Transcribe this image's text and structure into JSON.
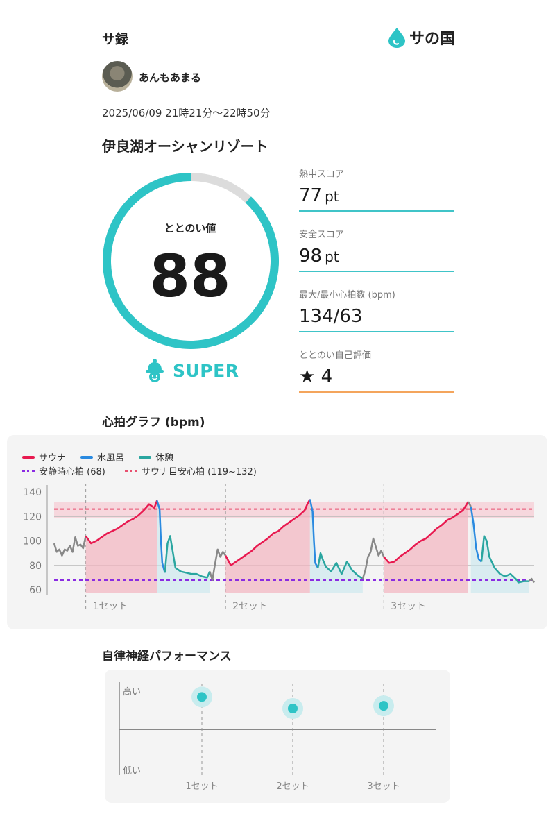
{
  "header": {
    "title": "サ録",
    "brand": "サの国"
  },
  "user": {
    "name": "あんもあまる"
  },
  "session": {
    "datetime": "2025/06/09 21時21分～22時50分",
    "facility": "伊良湖オーシャンリゾート"
  },
  "totonoi": {
    "label": "ととのい値",
    "value": "88",
    "value_num": 88,
    "max": 100,
    "rank": "SUPER"
  },
  "stats": [
    {
      "label": "熱中スコア",
      "value": "77",
      "unit": "pt"
    },
    {
      "label": "安全スコア",
      "value": "98",
      "unit": "pt"
    },
    {
      "label": "最大/最小心拍数 (bpm)",
      "value": "134/63",
      "unit": ""
    },
    {
      "label": "ととのい自己評価",
      "value": "★ 4",
      "unit": ""
    }
  ],
  "heart_section_title": "心拍グラフ (bpm)",
  "legend": {
    "sauna": "サウナ",
    "water": "水風呂",
    "rest": "休憩",
    "resting_hr": "安静時心拍 (68)",
    "sauna_target": "サウナ目安心拍 (119~132)"
  },
  "colors": {
    "accent": "#2ec4c6",
    "sauna": "#e8194f",
    "water": "#2a8ae0",
    "rest": "#2aa6a0",
    "resting": "#8a2be2",
    "pre": "#888888"
  },
  "chart_data": {
    "type": "line",
    "ylim": [
      60,
      140
    ],
    "yticks": [
      "140",
      "120",
      "100",
      "80",
      "60"
    ],
    "resting_hr": 68,
    "sauna_target_range": [
      119,
      132
    ],
    "set_labels": [
      "1セット",
      "2セット",
      "3セット"
    ],
    "segments": [
      {
        "series": "pre",
        "points": [
          [
            0,
            98
          ],
          [
            1,
            91
          ],
          [
            2,
            93
          ],
          [
            3,
            88
          ],
          [
            4,
            93
          ],
          [
            5,
            92
          ],
          [
            6,
            96
          ],
          [
            7,
            91
          ],
          [
            8,
            103
          ],
          [
            9,
            96
          ],
          [
            10,
            97
          ],
          [
            11,
            94
          ],
          [
            12,
            104
          ]
        ]
      },
      {
        "series": "sauna",
        "points": [
          [
            12,
            104
          ],
          [
            14,
            98
          ],
          [
            16,
            100
          ],
          [
            18,
            103
          ],
          [
            20,
            106
          ],
          [
            22,
            108
          ],
          [
            24,
            110
          ],
          [
            26,
            113
          ],
          [
            28,
            116
          ],
          [
            30,
            118
          ],
          [
            32,
            121
          ],
          [
            34,
            125
          ],
          [
            36,
            130
          ],
          [
            38,
            127
          ],
          [
            39,
            133
          ]
        ]
      },
      {
        "series": "water",
        "points": [
          [
            39,
            133
          ],
          [
            40,
            126
          ],
          [
            40.5,
            100
          ],
          [
            41,
            82
          ],
          [
            42,
            74
          ]
        ]
      },
      {
        "series": "rest",
        "points": [
          [
            42,
            74
          ],
          [
            43,
            98
          ],
          [
            44,
            104
          ],
          [
            45,
            91
          ],
          [
            46,
            78
          ],
          [
            48,
            75
          ],
          [
            50,
            74
          ],
          [
            52,
            73
          ],
          [
            54,
            73
          ],
          [
            56,
            71
          ],
          [
            58,
            70
          ],
          [
            59,
            75
          ]
        ]
      },
      {
        "series": "pre",
        "points": [
          [
            59,
            75
          ],
          [
            60,
            68
          ],
          [
            61,
            81
          ],
          [
            62,
            93
          ],
          [
            63,
            87
          ],
          [
            64,
            91
          ],
          [
            65,
            88
          ]
        ]
      },
      {
        "series": "sauna",
        "points": [
          [
            65,
            88
          ],
          [
            67,
            80
          ],
          [
            69,
            83
          ],
          [
            71,
            86
          ],
          [
            73,
            89
          ],
          [
            75,
            92
          ],
          [
            77,
            96
          ],
          [
            79,
            99
          ],
          [
            81,
            102
          ],
          [
            83,
            106
          ],
          [
            85,
            108
          ],
          [
            87,
            112
          ],
          [
            89,
            115
          ],
          [
            91,
            118
          ],
          [
            93,
            121
          ],
          [
            95,
            125
          ],
          [
            96,
            130
          ],
          [
            97,
            134
          ]
        ]
      },
      {
        "series": "water",
        "points": [
          [
            97,
            134
          ],
          [
            98,
            124
          ],
          [
            98.5,
            100
          ],
          [
            99,
            82
          ],
          [
            100,
            78
          ]
        ]
      },
      {
        "series": "rest",
        "points": [
          [
            100,
            78
          ],
          [
            101,
            90
          ],
          [
            102,
            84
          ],
          [
            103,
            79
          ],
          [
            105,
            75
          ],
          [
            107,
            82
          ],
          [
            109,
            73
          ],
          [
            111,
            83
          ],
          [
            113,
            76
          ],
          [
            115,
            72
          ],
          [
            117,
            69
          ]
        ]
      },
      {
        "series": "pre",
        "points": [
          [
            117,
            69
          ],
          [
            118,
            76
          ],
          [
            119,
            87
          ],
          [
            120,
            91
          ],
          [
            121,
            102
          ],
          [
            122,
            95
          ],
          [
            123,
            88
          ],
          [
            124,
            92
          ],
          [
            125,
            87
          ]
        ]
      },
      {
        "series": "sauna",
        "points": [
          [
            125,
            87
          ],
          [
            127,
            82
          ],
          [
            129,
            83
          ],
          [
            131,
            87
          ],
          [
            133,
            90
          ],
          [
            135,
            93
          ],
          [
            137,
            97
          ],
          [
            139,
            100
          ],
          [
            141,
            102
          ],
          [
            143,
            106
          ],
          [
            145,
            110
          ],
          [
            147,
            113
          ],
          [
            149,
            117
          ],
          [
            151,
            119
          ],
          [
            153,
            122
          ],
          [
            155,
            125
          ],
          [
            157,
            132
          ]
        ]
      },
      {
        "series": "pre",
        "points": [
          [
            157,
            132
          ],
          [
            158,
            128
          ]
        ]
      },
      {
        "series": "water",
        "points": [
          [
            158,
            128
          ],
          [
            159,
            114
          ],
          [
            160,
            94
          ],
          [
            161,
            85
          ],
          [
            162,
            83
          ]
        ]
      },
      {
        "series": "rest",
        "points": [
          [
            162,
            83
          ],
          [
            163,
            104
          ],
          [
            164,
            100
          ],
          [
            165,
            87
          ],
          [
            167,
            78
          ],
          [
            169,
            73
          ],
          [
            171,
            71
          ],
          [
            173,
            73
          ],
          [
            175,
            69
          ],
          [
            176,
            66
          ],
          [
            178,
            67
          ],
          [
            180,
            67
          ]
        ]
      },
      {
        "series": "pre",
        "points": [
          [
            180,
            67
          ],
          [
            181,
            69
          ],
          [
            182,
            66
          ]
        ]
      }
    ],
    "set_starts": [
      12,
      65,
      125
    ],
    "x_range": [
      0,
      182
    ]
  },
  "ans_section_title": "自律神経パフォーマンス",
  "ans_chart": {
    "y_high": "高い",
    "y_low": "低い",
    "sets": [
      "1セット",
      "2セット",
      "3セット"
    ],
    "levels": [
      0.88,
      0.75,
      0.78
    ]
  }
}
